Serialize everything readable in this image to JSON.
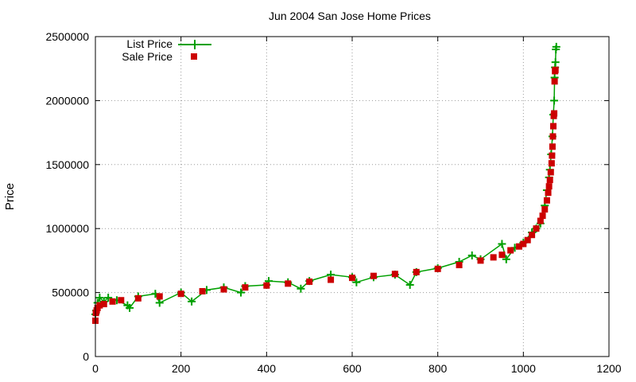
{
  "chart_data": {
    "type": "scatter",
    "title": "Jun 2004 San Jose Home Prices",
    "xlabel": "",
    "ylabel": "Price",
    "xlim": [
      0,
      1200
    ],
    "ylim": [
      0,
      2500000
    ],
    "xticks": [
      0,
      200,
      400,
      600,
      800,
      1000,
      1200
    ],
    "yticks": [
      0,
      500000,
      1000000,
      1500000,
      2000000,
      2500000
    ],
    "xtick_labels": [
      "0",
      "200",
      "400",
      "600",
      "800",
      "1000",
      "1200"
    ],
    "ytick_labels": [
      "0",
      "500000",
      "1000000",
      "1500000",
      "2000000",
      "2500000"
    ],
    "grid": true,
    "legend_position": "top-left",
    "series": [
      {
        "name": "List Price",
        "marker": "plus",
        "color": "#00a000",
        "x": [
          0,
          2,
          5,
          10,
          20,
          30,
          50,
          75,
          80,
          100,
          140,
          150,
          200,
          225,
          260,
          300,
          340,
          350,
          400,
          405,
          450,
          480,
          500,
          550,
          600,
          610,
          650,
          700,
          735,
          750,
          800,
          850,
          880,
          900,
          950,
          960,
          980,
          1000,
          1020,
          1030,
          1040,
          1050,
          1055,
          1060,
          1062,
          1065,
          1068,
          1070,
          1072,
          1073,
          1074,
          1075,
          1076,
          1077
        ],
        "values": [
          330000,
          360000,
          420000,
          460000,
          430000,
          460000,
          440000,
          400000,
          380000,
          470000,
          490000,
          420000,
          500000,
          430000,
          520000,
          540000,
          500000,
          550000,
          560000,
          590000,
          580000,
          530000,
          590000,
          640000,
          620000,
          580000,
          620000,
          640000,
          560000,
          660000,
          690000,
          740000,
          790000,
          760000,
          880000,
          760000,
          850000,
          890000,
          970000,
          1000000,
          1040000,
          1180000,
          1300000,
          1400000,
          1460000,
          1580000,
          1720000,
          1890000,
          2000000,
          2180000,
          2260000,
          2300000,
          2400000,
          2420000
        ]
      },
      {
        "name": "Sale Price",
        "marker": "square",
        "color": "#cc0000",
        "x": [
          0,
          1,
          3,
          5,
          10,
          20,
          40,
          60,
          100,
          150,
          200,
          250,
          300,
          350,
          400,
          450,
          500,
          550,
          600,
          650,
          700,
          750,
          800,
          850,
          900,
          930,
          950,
          970,
          990,
          1000,
          1010,
          1020,
          1030,
          1040,
          1045,
          1050,
          1055,
          1058,
          1060,
          1062,
          1064,
          1066,
          1067,
          1068,
          1069,
          1070,
          1071,
          1072,
          1073,
          1074,
          1075
        ],
        "values": [
          280000,
          340000,
          360000,
          380000,
          400000,
          410000,
          430000,
          440000,
          455000,
          470000,
          490000,
          510000,
          525000,
          540000,
          555000,
          570000,
          585000,
          600000,
          615000,
          630000,
          645000,
          660000,
          685000,
          715000,
          750000,
          775000,
          795000,
          830000,
          860000,
          880000,
          910000,
          950000,
          1000000,
          1060000,
          1100000,
          1150000,
          1220000,
          1280000,
          1330000,
          1380000,
          1440000,
          1510000,
          1570000,
          1640000,
          1720000,
          1800000,
          1880000,
          1900000,
          2150000,
          2230000,
          2240000
        ]
      }
    ]
  }
}
